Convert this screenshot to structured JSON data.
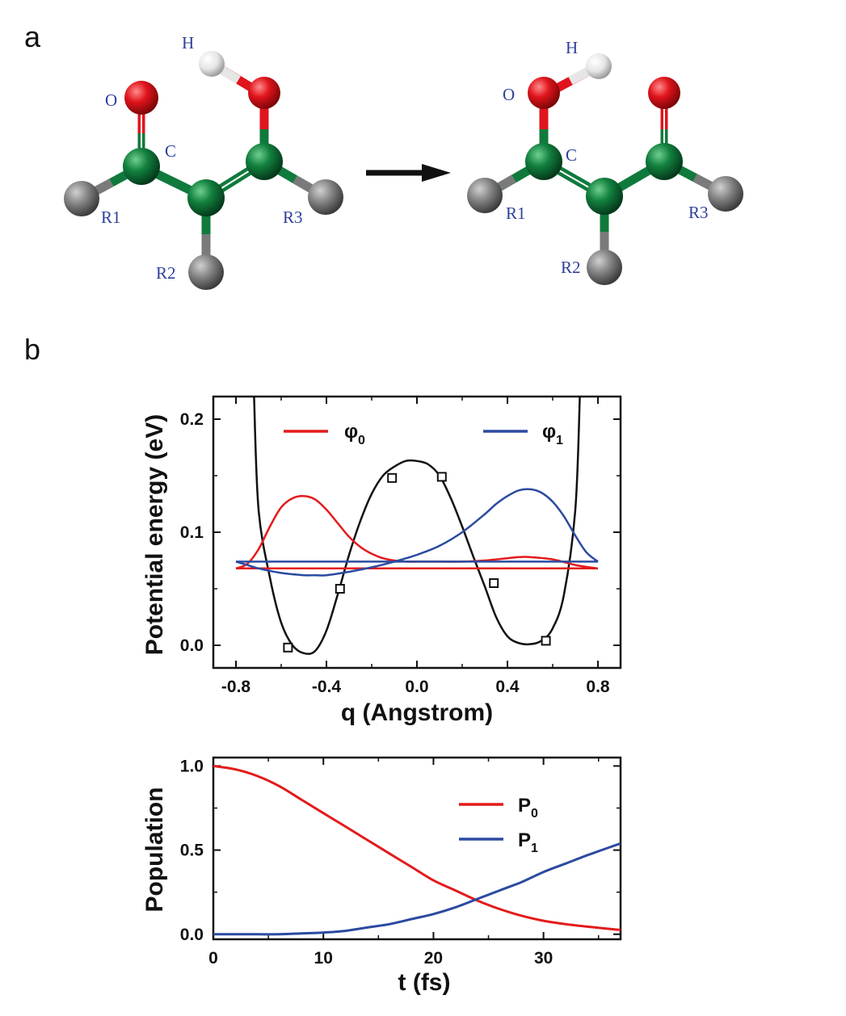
{
  "panels": {
    "a": "a",
    "b": "b"
  },
  "molecule_left": {
    "labels": {
      "O": "O",
      "H": "H",
      "C": "C",
      "R1": "R1",
      "R2": "R2",
      "R3": "R3"
    }
  },
  "molecule_right": {
    "labels": {
      "O": "O",
      "H": "H",
      "C": "C",
      "R1": "R1",
      "R2": "R2",
      "R3": "R3"
    }
  },
  "colors": {
    "oxygen": "#e0141c",
    "carbon": "#0f7a3c",
    "hydrogen": "#e8e8e8",
    "substituent": "#7a7a7a",
    "label": "#2e3f9a",
    "red_series": "#e31a1c",
    "blue_series": "#2b4aa0",
    "black_series": "#111111"
  },
  "chart_data": [
    {
      "type": "line",
      "xlabel": "q (Angstrom)",
      "ylabel": "Potential energy (eV)",
      "xlim": [
        -0.9,
        0.9
      ],
      "ylim": [
        -0.02,
        0.22
      ],
      "xticks": [
        "-0.8",
        "-0.4",
        "0.0",
        "0.4",
        "0.8"
      ],
      "xtick_values": [
        -0.8,
        -0.4,
        0.0,
        0.4,
        0.8
      ],
      "yticks": [
        "0.0",
        "0.1",
        "0.2"
      ],
      "ytick_values": [
        0.0,
        0.1,
        0.2
      ],
      "legend": [
        {
          "symbol": "φ",
          "sub": "0",
          "color": "#e31a1c"
        },
        {
          "symbol": "φ",
          "sub": "1",
          "color": "#2b4aa0"
        }
      ],
      "series": [
        {
          "kind": "potential",
          "x": [
            -0.72,
            -0.7,
            -0.65,
            -0.6,
            -0.55,
            -0.5,
            -0.45,
            -0.4,
            -0.35,
            -0.3,
            -0.25,
            -0.2,
            -0.15,
            -0.1,
            -0.05,
            0.0,
            0.05,
            0.1,
            0.15,
            0.2,
            0.25,
            0.3,
            0.35,
            0.4,
            0.45,
            0.5,
            0.55,
            0.6,
            0.65,
            0.7,
            0.72
          ],
          "y": [
            0.22,
            0.12,
            0.06,
            0.02,
            0.0,
            -0.007,
            -0.005,
            0.013,
            0.045,
            0.08,
            0.11,
            0.134,
            0.15,
            0.158,
            0.163,
            0.163,
            0.16,
            0.15,
            0.13,
            0.105,
            0.078,
            0.052,
            0.025,
            0.008,
            0.002,
            0.001,
            0.004,
            0.015,
            0.045,
            0.12,
            0.22
          ]
        },
        {
          "name": "φ0",
          "color": "#e31a1c",
          "baseline": 0.068,
          "x": [
            -0.8,
            -0.75,
            -0.7,
            -0.65,
            -0.6,
            -0.55,
            -0.5,
            -0.45,
            -0.4,
            -0.35,
            -0.3,
            -0.25,
            -0.2,
            -0.15,
            -0.1,
            -0.05,
            0.0,
            0.1,
            0.2,
            0.3,
            0.4,
            0.45,
            0.5,
            0.6,
            0.7,
            0.8
          ],
          "y": [
            0.068,
            0.072,
            0.085,
            0.105,
            0.122,
            0.13,
            0.132,
            0.129,
            0.12,
            0.108,
            0.096,
            0.087,
            0.081,
            0.077,
            0.075,
            0.074,
            0.074,
            0.074,
            0.074,
            0.075,
            0.077,
            0.078,
            0.078,
            0.076,
            0.071,
            0.068
          ]
        },
        {
          "name": "φ1",
          "color": "#2b4aa0",
          "baseline": 0.074,
          "x": [
            -0.8,
            -0.75,
            -0.7,
            -0.6,
            -0.5,
            -0.45,
            -0.4,
            -0.3,
            -0.2,
            -0.1,
            0.0,
            0.1,
            0.2,
            0.3,
            0.35,
            0.4,
            0.45,
            0.5,
            0.55,
            0.6,
            0.65,
            0.7,
            0.75,
            0.8
          ],
          "y": [
            0.074,
            0.071,
            0.068,
            0.064,
            0.062,
            0.062,
            0.062,
            0.065,
            0.069,
            0.074,
            0.08,
            0.088,
            0.1,
            0.116,
            0.125,
            0.132,
            0.137,
            0.138,
            0.135,
            0.127,
            0.114,
            0.097,
            0.082,
            0.074
          ]
        },
        {
          "kind": "markers",
          "x": [
            -0.57,
            -0.34,
            -0.11,
            0.11,
            0.34,
            0.57
          ],
          "y": [
            -0.002,
            0.05,
            0.148,
            0.149,
            0.055,
            0.004
          ]
        }
      ]
    },
    {
      "type": "line",
      "xlabel": "t (fs)",
      "ylabel": "Population",
      "xlim": [
        0,
        37
      ],
      "ylim": [
        -0.03,
        1.05
      ],
      "xticks": [
        "0",
        "10",
        "20",
        "30"
      ],
      "xtick_values": [
        0,
        10,
        20,
        30
      ],
      "yticks": [
        "0.0",
        "0.5",
        "1.0"
      ],
      "ytick_values": [
        0.0,
        0.5,
        1.0
      ],
      "legend": [
        {
          "symbol": "P",
          "sub": "0",
          "color": "#e31a1c"
        },
        {
          "symbol": "P",
          "sub": "1",
          "color": "#2b4aa0"
        }
      ],
      "series": [
        {
          "name": "P0",
          "color": "#e31a1c",
          "x": [
            0,
            2,
            4,
            6,
            8,
            10,
            12,
            14,
            16,
            18,
            20,
            22,
            24,
            26,
            28,
            30,
            32,
            34,
            37
          ],
          "y": [
            1.0,
            0.98,
            0.94,
            0.88,
            0.8,
            0.72,
            0.64,
            0.56,
            0.48,
            0.4,
            0.32,
            0.26,
            0.2,
            0.15,
            0.11,
            0.08,
            0.06,
            0.045,
            0.025
          ]
        },
        {
          "name": "P1",
          "color": "#2b4aa0",
          "x": [
            0,
            2,
            4,
            6,
            8,
            10,
            12,
            14,
            16,
            18,
            20,
            22,
            24,
            26,
            28,
            30,
            32,
            34,
            37
          ],
          "y": [
            0.0,
            0.0,
            0.0,
            0.0,
            0.005,
            0.01,
            0.02,
            0.04,
            0.06,
            0.09,
            0.12,
            0.16,
            0.21,
            0.26,
            0.31,
            0.37,
            0.42,
            0.47,
            0.54
          ]
        }
      ]
    }
  ]
}
